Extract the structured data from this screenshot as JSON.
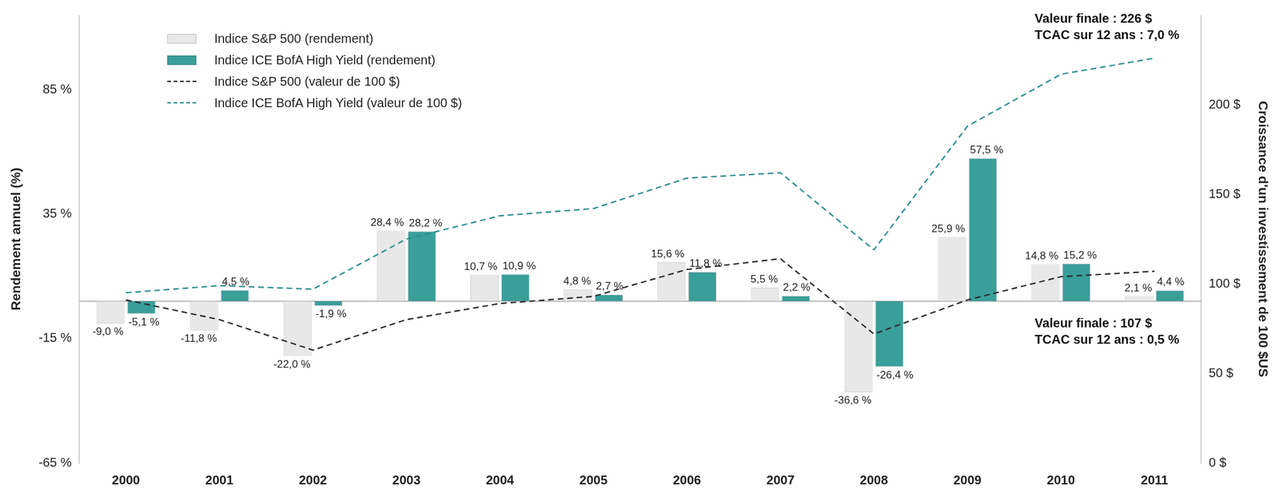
{
  "chart_data": {
    "type": "bar",
    "categories": [
      "2000",
      "2001",
      "2002",
      "2003",
      "2004",
      "2005",
      "2006",
      "2007",
      "2008",
      "2009",
      "2010",
      "2011"
    ],
    "y_label": "Rendement annuel (%)",
    "y2_label": "Croissance d'un investissement de 100 $US",
    "ylim": [
      -65,
      115
    ],
    "yticks": [
      {
        "value": -65,
        "label": "-65 %"
      },
      {
        "value": -15,
        "label": "-15 %"
      },
      {
        "value": 35,
        "label": "35 %"
      },
      {
        "value": 85,
        "label": "85 %"
      }
    ],
    "y2lim": [
      0,
      250
    ],
    "y2ticks": [
      {
        "value": 0,
        "label": "0 $"
      },
      {
        "value": 50,
        "label": "50 $"
      },
      {
        "value": 100,
        "label": "100 $"
      },
      {
        "value": 150,
        "label": "150 $"
      },
      {
        "value": 200,
        "label": "200 $"
      }
    ],
    "grid": false,
    "legend": "upper left",
    "series": [
      {
        "name": "Indice S&P 500 (rendement)",
        "type": "bar",
        "color": "#e8e8e8",
        "data_labels": true,
        "values": [
          -9.0,
          -11.8,
          -22.0,
          28.4,
          10.7,
          4.8,
          15.6,
          5.5,
          -36.6,
          25.9,
          14.8,
          2.1
        ],
        "value_labels": [
          "-9,0 %",
          "-11,8 %",
          "-22,0 %",
          "28,4 %",
          "10,7 %",
          "4,8 %",
          "15,6 %",
          "5,5 %",
          "-36,6 %",
          "25,9 %",
          "14,8 %",
          "2,1 %"
        ]
      },
      {
        "name": "Indice ICE BofA High Yield (rendement)",
        "type": "bar",
        "color": "#3a9e99",
        "data_labels": true,
        "values": [
          -5.1,
          4.5,
          -1.9,
          28.2,
          10.9,
          2.7,
          11.8,
          2.2,
          -26.4,
          57.5,
          15.2,
          4.4
        ],
        "value_labels": [
          "-5,1 %",
          "4,5 %",
          "-1,9 %",
          "28,2 %",
          "10,9 %",
          "2,7 %",
          "11,8 %",
          "2,2 %",
          "-26,4 %",
          "57,5 %",
          "15,2 %",
          "4,4 %"
        ]
      },
      {
        "name": "Indice S&P 500 (valeur de 100 $)",
        "type": "line",
        "axis": "y2",
        "color": "#2b2b2b",
        "line_style": "dashed",
        "marker": "none",
        "values": [
          91,
          80,
          63,
          80,
          89,
          93,
          108,
          114,
          72,
          91,
          104,
          107
        ]
      },
      {
        "name": "Indice ICE BofA High Yield (valeur de 100 $)",
        "type": "line",
        "axis": "y2",
        "color": "#2a8e8a",
        "line_style": "dashed",
        "marker": "none",
        "values": [
          95,
          99,
          97,
          125,
          138,
          142,
          159,
          162,
          119,
          188,
          217,
          226
        ]
      }
    ],
    "annotations": [
      {
        "series": "Indice ICE BofA High Yield (valeur de 100 $)",
        "text": [
          "Valeur finale : 226 $",
          "TCAC sur 12 ans : 7,0 %"
        ]
      },
      {
        "series": "Indice S&P 500 (valeur de 100 $)",
        "text": [
          "Valeur finale : 107 $",
          "TCAC sur 12 ans : 0,5 %"
        ]
      }
    ]
  }
}
